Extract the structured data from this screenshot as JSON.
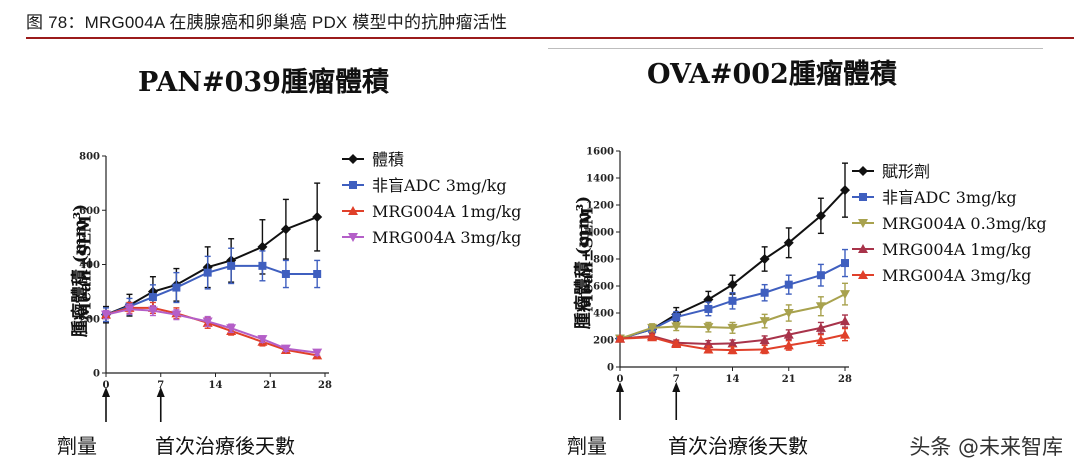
{
  "figure_title": "图 78：MRG004A 在胰腺癌和卵巢癌 PDX 模型中的抗肿瘤活性",
  "watermark": "头条 @未来智库",
  "chart_data": [
    {
      "type": "line",
      "title": "PAN#039腫瘤體積",
      "ylabel": "腫瘤體積 (mm³)",
      "ylabel2": "Mean±SEM",
      "xlabel": "首次治療後天數",
      "dose_label": "劑量",
      "xlim": [
        0,
        28
      ],
      "ylim": [
        0,
        800
      ],
      "xticks": [
        0,
        7,
        14,
        21,
        28
      ],
      "yticks": [
        0,
        200,
        400,
        600,
        800
      ],
      "dose_days": [
        0,
        7
      ],
      "series": [
        {
          "name": "體積",
          "color": "#111111",
          "marker": "diamond",
          "x": [
            0,
            3,
            6,
            9,
            13,
            16,
            20,
            23,
            27
          ],
          "y": [
            215,
            250,
            300,
            325,
            390,
            415,
            465,
            530,
            575
          ],
          "err": [
            30,
            40,
            55,
            60,
            75,
            80,
            100,
            110,
            125
          ]
        },
        {
          "name": "非盲ADC 3mg/kg",
          "color": "#3f5fbf",
          "marker": "square",
          "x": [
            0,
            3,
            6,
            9,
            13,
            16,
            20,
            23,
            27
          ],
          "y": [
            215,
            245,
            280,
            315,
            370,
            395,
            395,
            365,
            365
          ],
          "err": [
            25,
            30,
            45,
            55,
            60,
            65,
            55,
            50,
            50
          ]
        },
        {
          "name": "MRG004A 1mg/kg",
          "color": "#e0402a",
          "marker": "triangle",
          "x": [
            0,
            3,
            6,
            9,
            13,
            16,
            20,
            23,
            27
          ],
          "y": [
            215,
            240,
            240,
            220,
            185,
            155,
            115,
            85,
            65
          ],
          "err": [
            15,
            20,
            20,
            20,
            20,
            15,
            15,
            12,
            10
          ]
        },
        {
          "name": "MRG004A 3mg/kg",
          "color": "#b45fc8",
          "marker": "triangle-down",
          "x": [
            0,
            3,
            6,
            9,
            13,
            16,
            20,
            23,
            27
          ],
          "y": [
            215,
            235,
            230,
            215,
            190,
            165,
            125,
            90,
            75
          ],
          "err": [
            15,
            18,
            18,
            18,
            18,
            15,
            12,
            10,
            10
          ]
        }
      ]
    },
    {
      "type": "line",
      "title": "OVA#002腫瘤體積",
      "ylabel": "腫瘤體積 (mm³)",
      "ylabel2": "Mean±SEM",
      "xlabel": "首次治療後天數",
      "dose_label": "劑量",
      "xlim": [
        0,
        28
      ],
      "ylim": [
        0,
        1600
      ],
      "xticks": [
        0,
        7,
        14,
        21,
        28
      ],
      "yticks": [
        0,
        200,
        400,
        600,
        800,
        1000,
        1200,
        1400,
        1600
      ],
      "dose_days": [
        0,
        7
      ],
      "series": [
        {
          "name": "賦形劑",
          "color": "#111111",
          "marker": "diamond",
          "x": [
            0,
            4,
            7,
            11,
            14,
            18,
            21,
            25,
            28
          ],
          "y": [
            210,
            280,
            390,
            500,
            610,
            800,
            920,
            1120,
            1310
          ],
          "err": [
            20,
            30,
            50,
            60,
            70,
            90,
            110,
            130,
            200
          ]
        },
        {
          "name": "非盲ADC 3mg/kg",
          "color": "#3f5fbf",
          "marker": "square",
          "x": [
            0,
            4,
            7,
            11,
            14,
            18,
            21,
            25,
            28
          ],
          "y": [
            210,
            280,
            370,
            430,
            490,
            550,
            610,
            680,
            770
          ],
          "err": [
            20,
            30,
            40,
            50,
            60,
            60,
            70,
            80,
            100
          ]
        },
        {
          "name": "MRG004A 0.3mg/kg",
          "color": "#a8a24e",
          "marker": "triangle-down",
          "x": [
            0,
            4,
            7,
            11,
            14,
            18,
            21,
            25,
            28
          ],
          "y": [
            210,
            290,
            300,
            295,
            290,
            340,
            400,
            450,
            540
          ],
          "err": [
            20,
            30,
            30,
            35,
            40,
            50,
            60,
            70,
            80
          ]
        },
        {
          "name": "MRG004A 1mg/kg",
          "color": "#a8334a",
          "marker": "triangle",
          "x": [
            0,
            4,
            7,
            11,
            14,
            18,
            21,
            25,
            28
          ],
          "y": [
            210,
            230,
            180,
            170,
            175,
            200,
            240,
            290,
            340
          ],
          "err": [
            15,
            20,
            20,
            25,
            25,
            30,
            35,
            40,
            45
          ]
        },
        {
          "name": "MRG004A 3mg/kg",
          "color": "#e0402a",
          "marker": "triangle",
          "x": [
            0,
            4,
            7,
            11,
            14,
            18,
            21,
            25,
            28
          ],
          "y": [
            210,
            220,
            170,
            130,
            125,
            130,
            160,
            200,
            240
          ],
          "err": [
            15,
            20,
            20,
            25,
            25,
            30,
            35,
            40,
            45
          ]
        }
      ]
    }
  ]
}
